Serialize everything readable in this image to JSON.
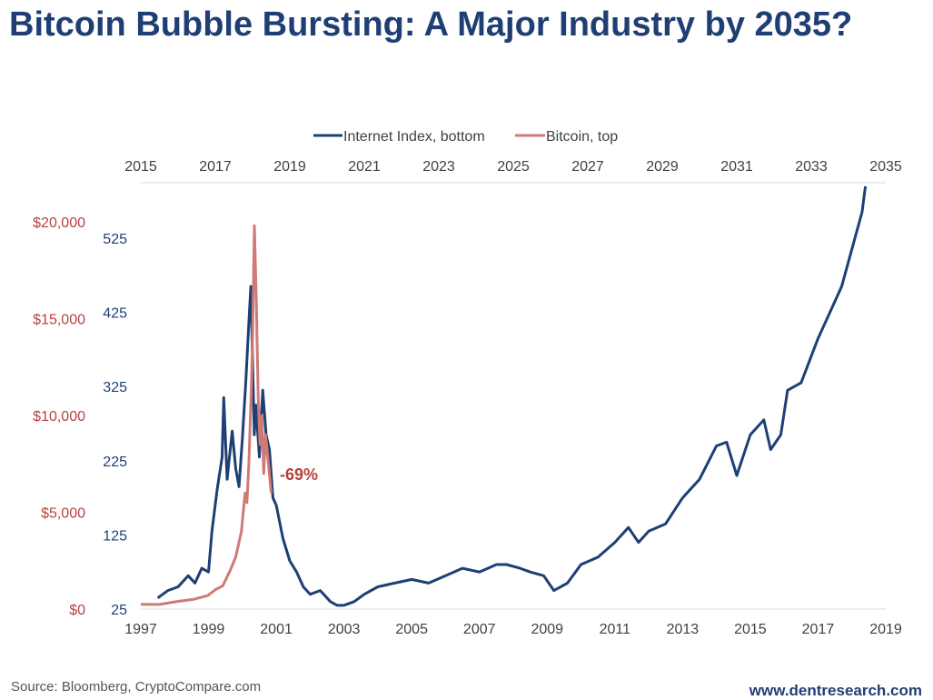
{
  "header": {
    "title": "Bitcoin Bubble Bursting: A Major Industry by 2035?"
  },
  "footer": {
    "source": "Source: Bloomberg, CryptoCompare.com",
    "website": "www.dentresearch.com"
  },
  "colors": {
    "internet": "#1f3f74",
    "bitcoin": "#d07a76",
    "red_axis": "#b5423e",
    "title": "#1f3f74"
  },
  "chart_data": {
    "type": "line",
    "title": "Bitcoin Bubble Bursting: A Major Industry by 2035?",
    "legend": {
      "position": "top-center",
      "entries": [
        "Internet Index, bottom",
        "Bitcoin, top"
      ]
    },
    "grid": false,
    "annotation": "-69%",
    "axes": {
      "x_bottom": {
        "range": [
          1997,
          2019
        ],
        "ticks": [
          "1997",
          "1999",
          "2001",
          "2003",
          "2005",
          "2007",
          "2009",
          "2011",
          "2013",
          "2015",
          "2017",
          "2019"
        ]
      },
      "x_top": {
        "range": [
          2015,
          2035
        ],
        "ticks": [
          "2015",
          "2017",
          "2019",
          "2021",
          "2023",
          "2025",
          "2027",
          "2029",
          "2031",
          "2033",
          "2035"
        ]
      },
      "y_left_bitcoin": {
        "range": [
          0,
          20000
        ],
        "ticks": [
          "$0",
          "$5,000",
          "$10,000",
          "$15,000",
          "$20,000"
        ]
      },
      "y_left_internet": {
        "range": [
          25,
          525
        ],
        "ticks": [
          "25",
          "125",
          "225",
          "325",
          "425",
          "525"
        ]
      }
    },
    "series": [
      {
        "name": "Internet Index, bottom",
        "axis": "bottom",
        "x": [
          1997.5,
          1997.8,
          1998.1,
          1998.4,
          1998.6,
          1998.8,
          1999.0,
          1999.1,
          1999.25,
          1999.4,
          1999.45,
          1999.55,
          1999.7,
          1999.8,
          1999.9,
          2000.0,
          2000.1,
          2000.2,
          2000.25,
          2000.35,
          2000.4,
          2000.5,
          2000.6,
          2000.7,
          2000.8,
          2000.9,
          2001.0,
          2001.2,
          2001.4,
          2001.6,
          2001.8,
          2002.0,
          2002.3,
          2002.6,
          2002.8,
          2003.0,
          2003.3,
          2003.6,
          2004.0,
          2004.5,
          2005.0,
          2005.5,
          2006.0,
          2006.5,
          2007.0,
          2007.5,
          2007.8,
          2008.2,
          2008.5,
          2008.9,
          2009.2,
          2009.6,
          2010.0,
          2010.5,
          2011.0,
          2011.4,
          2011.7,
          2012.0,
          2012.5,
          2013.0,
          2013.5,
          2014.0,
          2014.3,
          2014.6,
          2015.0,
          2015.4,
          2015.6,
          2015.9,
          2016.1,
          2016.5,
          2017.0,
          2017.4,
          2017.7,
          2018.0,
          2018.3,
          2018.4
        ],
        "y": [
          40,
          50,
          55,
          70,
          60,
          80,
          75,
          130,
          185,
          230,
          310,
          200,
          265,
          215,
          190,
          255,
          330,
          420,
          460,
          260,
          300,
          230,
          320,
          260,
          240,
          175,
          165,
          120,
          90,
          75,
          55,
          45,
          50,
          35,
          30,
          30,
          35,
          45,
          55,
          60,
          65,
          60,
          70,
          80,
          75,
          85,
          85,
          80,
          75,
          70,
          50,
          60,
          85,
          95,
          115,
          135,
          115,
          130,
          140,
          175,
          200,
          245,
          250,
          205,
          260,
          280,
          240,
          260,
          320,
          330,
          390,
          430,
          460,
          510,
          560,
          595
        ]
      },
      {
        "name": "Bitcoin, top",
        "axis": "top",
        "x": [
          2015.0,
          2015.5,
          2016.0,
          2016.4,
          2016.8,
          2017.0,
          2017.2,
          2017.4,
          2017.55,
          2017.7,
          2017.8,
          2017.85,
          2017.9,
          2017.96,
          2018.0,
          2018.05,
          2018.1,
          2018.15,
          2018.2,
          2018.25,
          2018.3,
          2018.35,
          2018.45,
          2018.5
        ],
        "y": [
          250,
          240,
          400,
          500,
          700,
          1000,
          1200,
          2000,
          2700,
          4000,
          6000,
          5500,
          7500,
          11000,
          14000,
          19800,
          16000,
          11000,
          8500,
          10000,
          7000,
          9000,
          7000,
          6000
        ]
      }
    ]
  }
}
